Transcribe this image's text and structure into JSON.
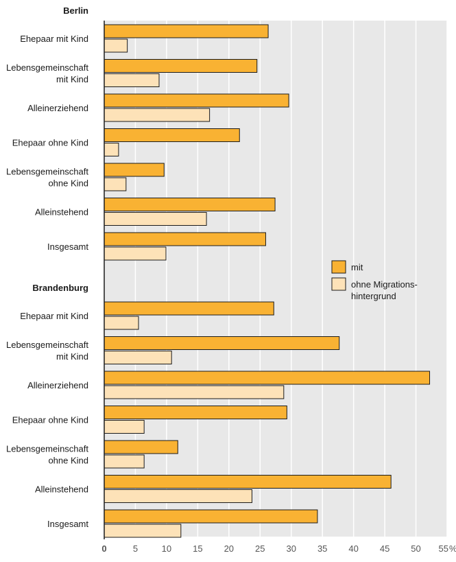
{
  "chart_data": {
    "type": "bar",
    "orientation": "horizontal",
    "groups": [
      {
        "name": "Berlin",
        "categories": [
          [
            "Ehepaar mit Kind"
          ],
          [
            "Lebensgemeinschaft",
            "mit Kind"
          ],
          [
            "Alleinerziehend"
          ],
          [
            "Ehepaar ohne Kind"
          ],
          [
            "Lebensgemeinschaft",
            "ohne Kind"
          ],
          [
            "Alleinstehend"
          ],
          [
            "Insgesamt"
          ]
        ],
        "mit": [
          26.3,
          24.5,
          29.6,
          21.7,
          9.6,
          27.4,
          25.9
        ],
        "ohne": [
          3.7,
          8.8,
          16.9,
          2.3,
          3.5,
          16.4,
          9.9
        ]
      },
      {
        "name": "Brandenburg",
        "categories": [
          [
            "Ehepaar mit Kind"
          ],
          [
            "Lebensgemeinschaft",
            "mit Kind"
          ],
          [
            "Alleinerziehend"
          ],
          [
            "Ehepaar ohne Kind"
          ],
          [
            "Lebensgemeinschaft",
            "ohne Kind"
          ],
          [
            "Alleinstehend"
          ],
          [
            "Insgesamt"
          ]
        ],
        "mit": [
          27.2,
          37.7,
          52.2,
          29.3,
          11.8,
          46.0,
          34.2
        ],
        "ohne": [
          5.5,
          10.8,
          28.8,
          6.4,
          6.4,
          23.7,
          12.3
        ]
      }
    ],
    "series": [
      {
        "name": "mit",
        "key": "mit",
        "color": "#f9b233"
      },
      {
        "name": "ohne Migrations-hintergrund",
        "legend_lines": [
          "ohne Migrations-",
          "hintergrund"
        ],
        "key": "ohne",
        "color": "#fde2b8"
      }
    ],
    "xlim": [
      0,
      55
    ],
    "xticks": [
      0,
      5,
      10,
      15,
      20,
      25,
      30,
      35,
      40,
      45,
      50,
      55
    ],
    "x_unit": "%",
    "grid": true,
    "plot_background": "#e8e8e8",
    "bar_stroke": "#1a1a1a",
    "legend_position": "center-right"
  }
}
